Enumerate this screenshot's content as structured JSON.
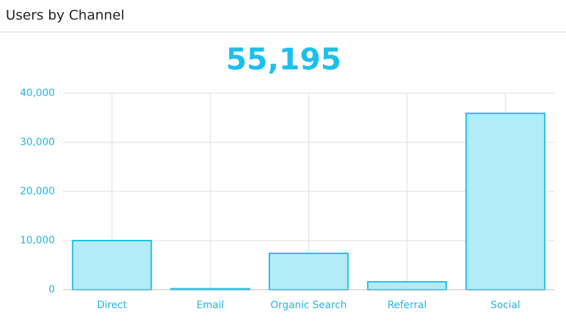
{
  "chart_data": {
    "type": "bar",
    "title": "Users by Channel",
    "total": "55,195",
    "categories": [
      "Direct",
      "Email",
      "Organic Search",
      "Referral",
      "Social"
    ],
    "values": [
      10000,
      200,
      7400,
      1600,
      35900
    ],
    "color": "#1ec0ea",
    "fill": "#b3ebf8",
    "ylim": [
      0,
      40000
    ],
    "yticks": [
      0,
      {
        "value": 10000,
        "label": "10,000"
      },
      {
        "value": 20000,
        "label": "20,000"
      },
      {
        "value": 30000,
        "label": "30,000"
      },
      {
        "value": 40000,
        "label": "40,000"
      }
    ],
    "grid": true
  }
}
